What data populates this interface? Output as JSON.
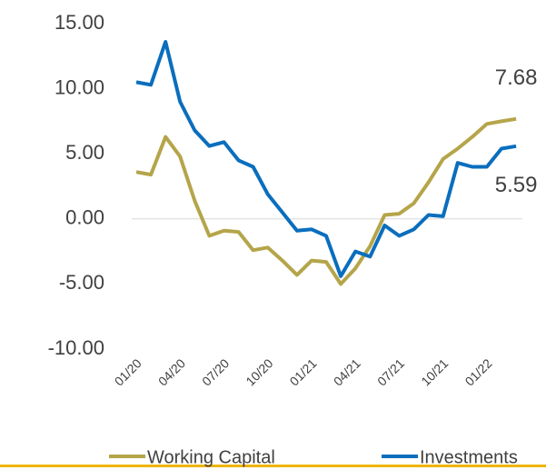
{
  "chart_data": {
    "type": "line",
    "categories": [
      "01/20",
      null,
      null,
      "04/20",
      null,
      null,
      "07/20",
      null,
      null,
      "10/20",
      null,
      null,
      "01/21",
      null,
      null,
      "04/21",
      null,
      null,
      "07/21",
      null,
      null,
      "10/21",
      null,
      null,
      "01/22",
      null,
      null
    ],
    "series": [
      {
        "name": "Working Capital",
        "color": "#b5a54a",
        "values": [
          3.6,
          3.4,
          6.3,
          4.8,
          1.4,
          -1.3,
          -0.9,
          -1.0,
          -2.4,
          -2.2,
          -3.2,
          -4.3,
          -3.2,
          -3.3,
          -5.0,
          -3.8,
          -2.1,
          0.3,
          0.4,
          1.2,
          2.8,
          4.6,
          5.4,
          6.3,
          7.3,
          7.5,
          7.68
        ]
      },
      {
        "name": "Investments",
        "color": "#0a6ebd",
        "values": [
          10.5,
          10.3,
          13.6,
          9.0,
          6.8,
          5.6,
          5.9,
          4.5,
          4.0,
          1.9,
          0.5,
          -0.9,
          -0.8,
          -1.3,
          -4.4,
          -2.5,
          -2.9,
          -0.5,
          -1.3,
          -0.8,
          0.3,
          0.2,
          4.3,
          4.0,
          4.0,
          5.4,
          5.59
        ]
      }
    ],
    "ylim": [
      -10,
      15
    ],
    "yticks": [
      {
        "value": -10,
        "label": "-10.00"
      },
      {
        "value": -5,
        "label": "-5.00"
      },
      {
        "value": 0,
        "label": "0.00"
      },
      {
        "value": 5,
        "label": "5.00"
      },
      {
        "value": 10,
        "label": "10.00"
      },
      {
        "value": 15,
        "label": "15.00"
      }
    ],
    "grid": false,
    "legend": "bottom"
  }
}
